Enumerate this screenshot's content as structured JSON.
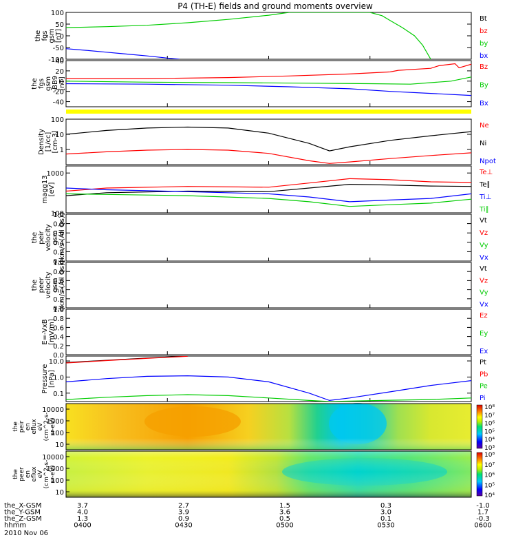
{
  "title": "P4 (TH-E) fields and ground moments overview",
  "chart_data": {
    "type": "line",
    "x_ticks": [
      "0400",
      "0430",
      "0500",
      "0530",
      "0600"
    ],
    "panels": [
      {
        "ylabel": [
          "the",
          "fgs",
          "gsm",
          "[nT]"
        ],
        "yrange": [
          -100,
          100
        ],
        "ticks": [
          "100",
          "50",
          "0",
          "-50",
          "-100"
        ],
        "tick_values": [
          100,
          50,
          0,
          -50,
          -100
        ],
        "legend": [
          {
            "label": "Bt",
            "color": "#000000"
          },
          {
            "label": "bz",
            "color": "#ff0000"
          },
          {
            "label": "by",
            "color": "#00cc00"
          },
          {
            "label": "bx",
            "color": "#0000ff"
          }
        ],
        "series": [
          {
            "color": "#00cc00",
            "x": [
              0,
              0.1,
              0.2,
              0.3,
              0.4,
              0.5,
              0.55,
              0.75,
              0.78,
              0.8,
              0.83,
              0.86,
              0.88,
              0.9
            ],
            "y": [
              35,
              39,
              45,
              56,
              70,
              88,
              100,
              100,
              86,
              65,
              35,
              0,
              -40,
              -100
            ]
          },
          {
            "color": "#0000ff",
            "x": [
              0,
              0.05,
              0.1,
              0.15,
              0.2,
              0.25,
              0.28
            ],
            "y": [
              -55,
              -62,
              -70,
              -78,
              -86,
              -95,
              -100
            ]
          }
        ]
      },
      {
        "ylabel": [
          "the",
          "fgs",
          "gsm",
          "-BB9",
          "[nT]"
        ],
        "yrange": [
          -50,
          40
        ],
        "ticks": [
          "40",
          "20",
          "0",
          "-20",
          "-40"
        ],
        "tick_values": [
          40,
          20,
          0,
          -20,
          -40
        ],
        "legend": [
          {
            "label": "Bz",
            "color": "#ff0000"
          },
          {
            "label": "By",
            "color": "#00cc00"
          },
          {
            "label": "Bx",
            "color": "#0000ff"
          }
        ],
        "series": [
          {
            "color": "#ff0000",
            "x": [
              0,
              0.2,
              0.4,
              0.55,
              0.7,
              0.8,
              0.82,
              0.9,
              0.92,
              0.96,
              0.97,
              1
            ],
            "y": [
              5,
              5,
              7,
              10,
              14,
              18,
              21,
              25,
              30,
              34,
              26,
              33
            ]
          },
          {
            "color": "#00cc00",
            "x": [
              0,
              0.2,
              0.4,
              0.6,
              0.75,
              0.85,
              0.9,
              0.95,
              1
            ],
            "y": [
              0,
              -2,
              -3,
              -4,
              -5,
              -6,
              -3,
              0,
              8
            ]
          },
          {
            "color": "#0000ff",
            "x": [
              0,
              0.2,
              0.4,
              0.55,
              0.7,
              0.8,
              0.9,
              1
            ],
            "y": [
              -5,
              -6,
              -8,
              -11,
              -15,
              -20,
              -24,
              -28
            ]
          }
        ]
      },
      {
        "ylabel": [
          "Density",
          "[1/cc]",
          "[cm-3]"
        ],
        "yrange": [
          0.1,
          100
        ],
        "log": true,
        "ticks": [
          "100",
          "10",
          "1"
        ],
        "tick_values": [
          100,
          10,
          1
        ],
        "legend": [
          {
            "label": "Ne",
            "color": "#ff0000"
          },
          {
            "label": "Ni",
            "color": "#000000"
          },
          {
            "label": "Npot",
            "color": "#0000ff"
          }
        ],
        "series": [
          {
            "color": "#000000",
            "x": [
              0,
              0.1,
              0.2,
              0.3,
              0.4,
              0.5,
              0.6,
              0.65,
              0.7,
              0.8,
              0.9,
              1
            ],
            "y": [
              10,
              18,
              26,
              30,
              26,
              12,
              2.5,
              0.8,
              1.5,
              4,
              8,
              15
            ]
          },
          {
            "color": "#ff0000",
            "x": [
              0,
              0.1,
              0.2,
              0.3,
              0.4,
              0.5,
              0.6,
              0.65,
              0.7,
              0.8,
              0.9,
              1
            ],
            "y": [
              0.5,
              0.7,
              0.9,
              1.0,
              0.9,
              0.55,
              0.18,
              0.12,
              0.15,
              0.25,
              0.4,
              0.6
            ]
          }
        ]
      },
      {
        "ylabel": [
          "magg13",
          "[eV]"
        ],
        "yrange": [
          100,
          1500
        ],
        "log": true,
        "ticks": [
          "1000",
          "100"
        ],
        "tick_values": [
          1000,
          100
        ],
        "legend": [
          {
            "label": "Te⊥",
            "color": "#ff0000"
          },
          {
            "label": "Te∥",
            "color": "#000000"
          },
          {
            "label": "Ti⊥",
            "color": "#0000ff"
          },
          {
            "label": "Ti∥",
            "color": "#00cc00"
          }
        ],
        "series": [
          {
            "color": "#ff0000",
            "x": [
              0,
              0.1,
              0.3,
              0.5,
              0.6,
              0.7,
              0.8,
              0.9,
              1
            ],
            "y": [
              350,
              420,
              460,
              440,
              560,
              720,
              680,
              600,
              580
            ]
          },
          {
            "color": "#000000",
            "x": [
              0,
              0.1,
              0.3,
              0.5,
              0.6,
              0.7,
              0.8,
              0.9,
              1
            ],
            "y": [
              270,
              320,
              350,
              340,
              420,
              520,
              500,
              470,
              460
            ]
          },
          {
            "color": "#0000ff",
            "x": [
              0,
              0.1,
              0.3,
              0.5,
              0.6,
              0.7,
              0.8,
              0.9,
              1
            ],
            "y": [
              420,
              380,
              340,
              300,
              250,
              190,
              210,
              230,
              300
            ]
          },
          {
            "color": "#00cc00",
            "x": [
              0,
              0.1,
              0.3,
              0.5,
              0.6,
              0.7,
              0.8,
              0.9,
              1
            ],
            "y": [
              300,
              290,
              270,
              230,
              190,
              145,
              160,
              175,
              220
            ]
          }
        ]
      },
      {
        "ylabel": [
          "the",
          "peir",
          "velocity",
          "gsm",
          "[km/s (All Qs)]"
        ],
        "yrange": [
          0,
          1
        ],
        "ticks": [
          "1.0",
          "0.8",
          "0.6",
          "0.4",
          "0.2",
          "0.0"
        ],
        "tick_values": [
          1,
          0.8,
          0.6,
          0.4,
          0.2,
          0
        ],
        "legend": [
          {
            "label": "Vt",
            "color": "#000000"
          },
          {
            "label": "Vz",
            "color": "#ff0000"
          },
          {
            "label": "Vy",
            "color": "#00cc00"
          },
          {
            "label": "Vx",
            "color": "#0000ff"
          }
        ],
        "series": []
      },
      {
        "ylabel": [
          "the",
          "peer",
          "velocity",
          "gsm",
          "[km/s (All Qs)]"
        ],
        "yrange": [
          0,
          1
        ],
        "ticks": [
          "1.0",
          "0.8",
          "0.6",
          "0.4",
          "0.2",
          "0.0"
        ],
        "tick_values": [
          1,
          0.8,
          0.6,
          0.4,
          0.2,
          0
        ],
        "legend": [
          {
            "label": "Vt",
            "color": "#000000"
          },
          {
            "label": "Vz",
            "color": "#ff0000"
          },
          {
            "label": "Vy",
            "color": "#00cc00"
          },
          {
            "label": "Vx",
            "color": "#0000ff"
          }
        ],
        "series": []
      },
      {
        "ylabel": [
          "E=-VxB",
          "[mV/m]"
        ],
        "yrange": [
          0,
          1
        ],
        "ticks": [
          "1.0",
          "0.8",
          "0.6",
          "0.4",
          "0.2",
          "0.0"
        ],
        "tick_values": [
          1,
          0.8,
          0.6,
          0.4,
          0.2,
          0
        ],
        "legend": [
          {
            "label": "Ez",
            "color": "#ff0000"
          },
          {
            "label": "Ey",
            "color": "#00cc00"
          },
          {
            "label": "Ex",
            "color": "#0000ff"
          }
        ],
        "series": []
      },
      {
        "ylabel": [
          "Pressure",
          "[nPa]"
        ],
        "yrange": [
          0.03,
          20
        ],
        "log": true,
        "ticks": [
          "10.0",
          "1.0",
          "0.1"
        ],
        "tick_values": [
          10,
          1,
          0.1
        ],
        "legend": [
          {
            "label": "Pt",
            "color": "#000000"
          },
          {
            "label": "Pb",
            "color": "#ff0000"
          },
          {
            "label": "Pe",
            "color": "#00cc00"
          },
          {
            "label": "Pi",
            "color": "#0000ff"
          }
        ],
        "series": [
          {
            "color": "#000000",
            "x": [
              0,
              0.1,
              0.2,
              0.3
            ],
            "y": [
              8,
              11,
              15,
              20
            ]
          },
          {
            "color": "#ff0000",
            "x": [
              0,
              0.1,
              0.2,
              0.3
            ],
            "y": [
              7.5,
              10.5,
              14.5,
              19.5
            ]
          },
          {
            "color": "#0000ff",
            "x": [
              0,
              0.1,
              0.2,
              0.3,
              0.4,
              0.5,
              0.6,
              0.65,
              0.7,
              0.8,
              0.9,
              1
            ],
            "y": [
              0.5,
              0.8,
              1.1,
              1.2,
              1.0,
              0.5,
              0.1,
              0.035,
              0.05,
              0.12,
              0.3,
              0.6
            ]
          },
          {
            "color": "#00cc00",
            "x": [
              0,
              0.1,
              0.2,
              0.3,
              0.4,
              0.5,
              0.6,
              0.65,
              0.7,
              0.8,
              0.9,
              1
            ],
            "y": [
              0.04,
              0.055,
              0.07,
              0.08,
              0.07,
              0.05,
              0.035,
              0.03,
              0.032,
              0.036,
              0.04,
              0.05
            ]
          }
        ]
      }
    ],
    "spectrograms": [
      {
        "ylabel": [
          "the",
          "peir",
          "en",
          "eflux",
          "eV",
          "(cm^2-s-",
          "sr-eV)"
        ],
        "ticks": [
          "10000",
          "1000",
          "100",
          "10"
        ],
        "colorbar_ticks": [
          "10^8",
          "10^7",
          "10^6",
          "10^5",
          "10^4",
          "10^3"
        ]
      },
      {
        "ylabel": [
          "the",
          "peer",
          "en",
          "eflux",
          "eV",
          "(cm^2-s-",
          "sr-eV)"
        ],
        "ticks": [
          "10000",
          "1000",
          "100",
          "10"
        ],
        "colorbar_ticks": [
          "10^8",
          "10^7",
          "10^6",
          "10^5",
          "10^4"
        ]
      }
    ]
  },
  "yellow_bar_color": "#ffff00",
  "position_rows": [
    {
      "label": "the_X-GSM",
      "values": [
        "3.7",
        "2.7",
        "1.5",
        "0.3",
        "-1.0"
      ]
    },
    {
      "label": "the_Y-GSM",
      "values": [
        "4.0",
        "3.9",
        "3.6",
        "3.0",
        "1.7"
      ]
    },
    {
      "label": "the_Z-GSM",
      "values": [
        "1.3",
        "0.9",
        "0.5",
        "0.1",
        "-0.3"
      ]
    },
    {
      "label": "hhmm",
      "values": [
        "0400",
        "0430",
        "0500",
        "0530",
        "0600"
      ]
    }
  ],
  "date": "2010 Nov 06"
}
